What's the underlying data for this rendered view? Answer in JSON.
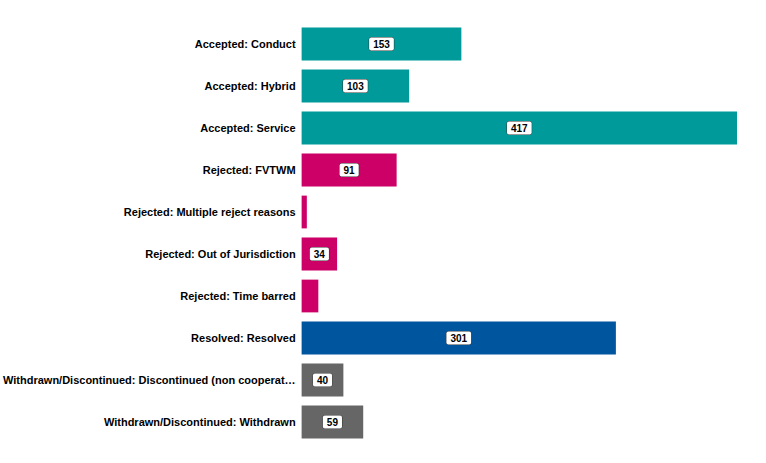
{
  "chart_data": {
    "type": "bar",
    "orientation": "horizontal",
    "categories": [
      "Accepted: Conduct",
      "Accepted: Hybrid",
      "Accepted: Service",
      "Rejected: FVTWM",
      "Rejected: Multiple reject reasons",
      "Rejected: Out of Jurisdiction",
      "Rejected: Time barred",
      "Resolved: Resolved",
      "Withdrawn/Discontinued: Discontinued (non cooperat…",
      "Withdrawn/Discontinued: Withdrawn"
    ],
    "values": [
      153,
      103,
      417,
      91,
      5,
      34,
      16,
      301,
      40,
      59
    ],
    "value_labels": [
      "153",
      "103",
      "417",
      "91",
      null,
      "34",
      null,
      "301",
      "40",
      "59"
    ],
    "colors": [
      "#009a9a",
      "#009a9a",
      "#009a9a",
      "#cc0066",
      "#cc0066",
      "#cc0066",
      "#cc0066",
      "#00559f",
      "#666666",
      "#666666"
    ],
    "xlim": [
      0,
      417
    ],
    "grid": false,
    "data_labels": true,
    "tick_labels": "y"
  }
}
